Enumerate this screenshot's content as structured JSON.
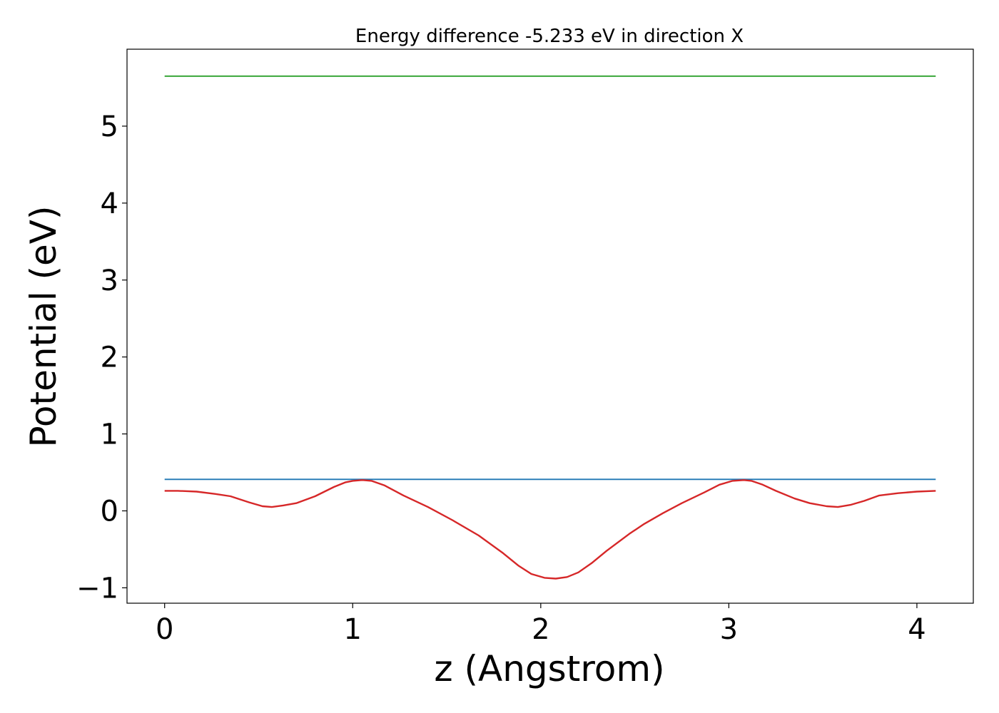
{
  "chart_data": {
    "type": "line",
    "title": "Energy difference -5.233 eV in direction X",
    "xlabel": "z (Angstrom)",
    "ylabel": "Potential (eV)",
    "xlim": [
      -0.2,
      4.3
    ],
    "ylim": [
      -1.2,
      6.0
    ],
    "x_ticks": [
      0,
      1,
      2,
      3,
      4
    ],
    "x_tick_labels": [
      "0",
      "1",
      "2",
      "3",
      "4"
    ],
    "y_ticks": [
      -1,
      0,
      1,
      2,
      3,
      4,
      5
    ],
    "y_tick_labels": [
      "−1",
      "0",
      "1",
      "2",
      "3",
      "4",
      "5"
    ],
    "grid": false,
    "series": [
      {
        "color": "#2ca02c",
        "x": [
          0,
          4.1
        ],
        "y": [
          5.65,
          5.65
        ]
      },
      {
        "color": "#1f77b4",
        "x": [
          0,
          4.1
        ],
        "y": [
          0.41,
          0.41
        ]
      },
      {
        "color": "#d62728",
        "x": [
          0,
          0.07,
          0.17,
          0.27,
          0.35,
          0.45,
          0.52,
          0.57,
          0.63,
          0.7,
          0.8,
          0.9,
          0.96,
          1.0,
          1.05,
          1.1,
          1.17,
          1.27,
          1.4,
          1.53,
          1.67,
          1.8,
          1.88,
          1.95,
          2.02,
          2.08,
          2.14,
          2.2,
          2.27,
          2.35,
          2.47,
          2.55,
          2.65,
          2.75,
          2.87,
          2.95,
          3.02,
          3.08,
          3.12,
          3.18,
          3.25,
          3.35,
          3.43,
          3.52,
          3.58,
          3.65,
          3.72,
          3.8,
          3.9,
          4.0,
          4.1
        ],
        "y": [
          0.26,
          0.26,
          0.25,
          0.22,
          0.19,
          0.11,
          0.06,
          0.05,
          0.07,
          0.1,
          0.19,
          0.31,
          0.37,
          0.39,
          0.4,
          0.39,
          0.33,
          0.2,
          0.05,
          -0.12,
          -0.32,
          -0.55,
          -0.71,
          -0.82,
          -0.87,
          -0.88,
          -0.86,
          -0.8,
          -0.68,
          -0.52,
          -0.3,
          -0.17,
          -0.03,
          0.1,
          0.24,
          0.34,
          0.39,
          0.4,
          0.39,
          0.34,
          0.26,
          0.16,
          0.1,
          0.06,
          0.05,
          0.08,
          0.13,
          0.2,
          0.23,
          0.25,
          0.26
        ]
      }
    ]
  }
}
